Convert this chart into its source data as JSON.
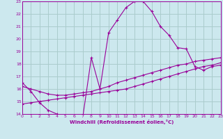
{
  "xlabel": "Windchill (Refroidissement éolien,°C)",
  "xlim": [
    0,
    23
  ],
  "ylim": [
    14,
    23
  ],
  "xticks": [
    0,
    1,
    2,
    3,
    4,
    5,
    6,
    7,
    8,
    9,
    10,
    11,
    12,
    13,
    14,
    15,
    16,
    17,
    18,
    19,
    20,
    21,
    22,
    23
  ],
  "yticks": [
    14,
    15,
    16,
    17,
    18,
    19,
    20,
    21,
    22,
    23
  ],
  "bg_color": "#cce8ee",
  "line_color": "#990099",
  "grid_color": "#aacccc",
  "lines": [
    {
      "x": [
        0,
        1,
        2,
        3,
        4,
        5,
        6,
        7,
        8,
        9,
        10,
        11,
        12,
        13,
        14,
        15,
        16,
        17,
        18,
        19,
        20,
        21,
        22,
        23
      ],
      "y": [
        16.5,
        15.8,
        14.9,
        14.3,
        14.0,
        13.8,
        13.7,
        13.7,
        18.5,
        16.0,
        20.5,
        21.5,
        22.5,
        23.0,
        23.0,
        22.2,
        21.0,
        20.3,
        19.3,
        19.2,
        17.8,
        17.5,
        17.8,
        17.9
      ]
    },
    {
      "x": [
        0,
        1,
        2,
        3,
        4,
        5,
        6,
        7,
        8,
        9,
        10,
        11,
        12,
        13,
        14,
        15,
        16,
        17,
        18,
        19,
        20,
        21,
        22,
        23
      ],
      "y": [
        14.8,
        14.9,
        15.0,
        15.1,
        15.2,
        15.3,
        15.4,
        15.5,
        15.6,
        15.7,
        15.8,
        15.9,
        16.0,
        16.2,
        16.4,
        16.6,
        16.8,
        17.0,
        17.2,
        17.4,
        17.6,
        17.8,
        17.9,
        18.1
      ]
    },
    {
      "x": [
        0,
        1,
        2,
        3,
        4,
        5,
        6,
        7,
        8,
        9,
        10,
        11,
        12,
        13,
        14,
        15,
        16,
        17,
        18,
        19,
        20,
        21,
        22,
        23
      ],
      "y": [
        16.2,
        16.0,
        15.8,
        15.6,
        15.5,
        15.5,
        15.6,
        15.7,
        15.8,
        16.0,
        16.2,
        16.5,
        16.7,
        16.9,
        17.1,
        17.3,
        17.5,
        17.7,
        17.9,
        18.0,
        18.2,
        18.3,
        18.4,
        18.5
      ]
    }
  ]
}
